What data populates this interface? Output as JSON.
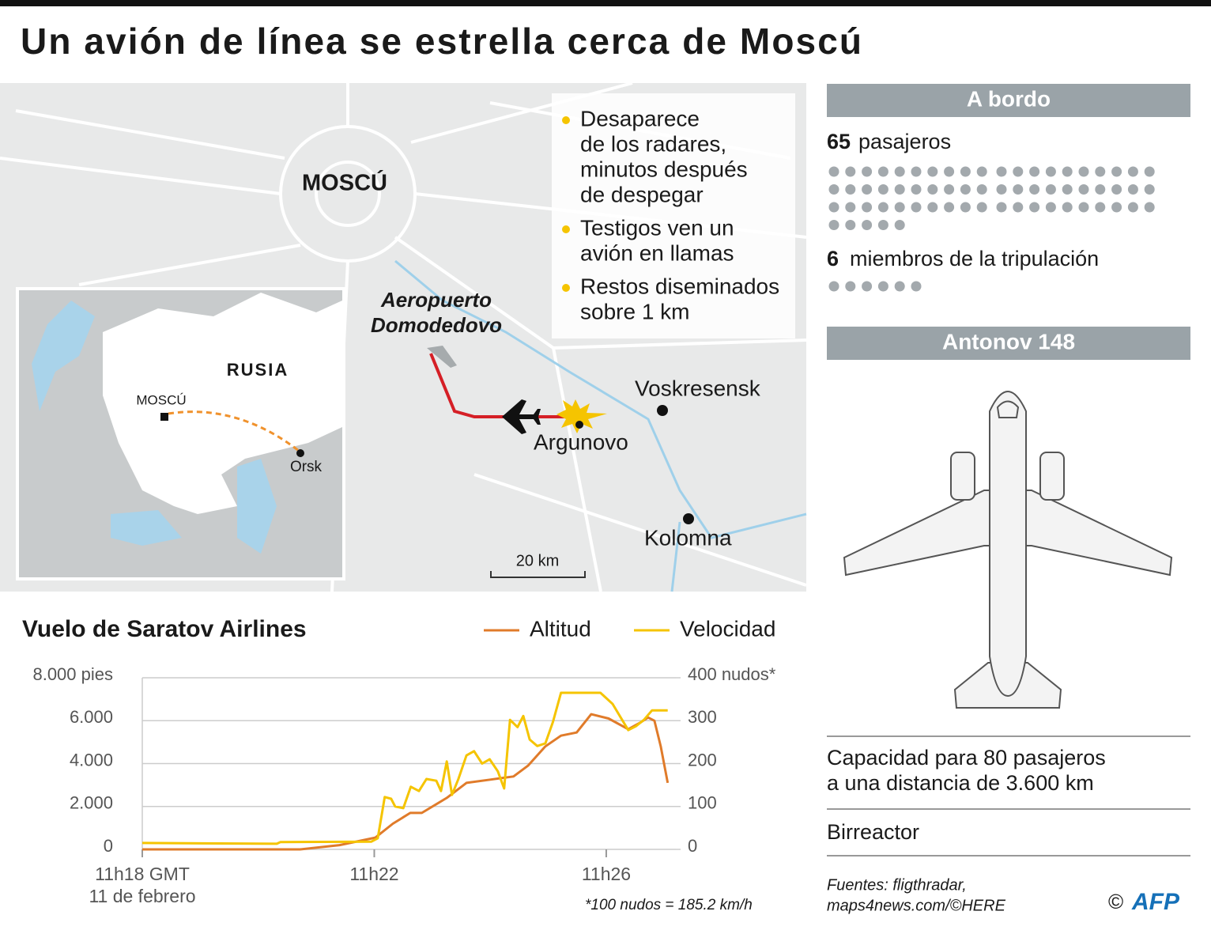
{
  "title": "Un avión de línea se estrella cerca de Moscú",
  "map": {
    "city": "MOSCÚ",
    "airport": [
      "Aeropuerto",
      "Domodedovo"
    ],
    "places": [
      "Voskresensk",
      "Argunovo",
      "Kolomna"
    ],
    "scale": "20 km",
    "notes": [
      [
        "Desaparece",
        "de los radares,",
        "minutos después",
        "de despegar"
      ],
      [
        "Testigos ven un",
        "avión en llamas"
      ],
      [
        "Restos diseminados",
        "sobre 1 km"
      ]
    ],
    "inset": {
      "country": "RUSIA",
      "capital": "MOSCÚ",
      "city": "Orsk"
    }
  },
  "sidebar": {
    "onboard_header": "A bordo",
    "passengers": {
      "count": 65,
      "label": "pasajeros"
    },
    "crew": {
      "count": 6,
      "label": "miembros de la tripulación"
    },
    "aircraft_header": "Antonov 148",
    "specs": [
      [
        "Capacidad para 80 pasajeros",
        "a una distancia de 3.600 km"
      ],
      [
        "Birreactor"
      ]
    ]
  },
  "sources": [
    "Fuentes: fligthradar,",
    "maps4news.com/©HERE"
  ],
  "copyright": "©",
  "logo": "AFP",
  "chart_data": {
    "type": "line",
    "title": "Vuelo de Saratov Airlines",
    "x_date_label": "11 de febrero",
    "footnote": "*100 nudos = 185.2 km/h",
    "xlim": [
      18,
      27.2
    ],
    "xticks": [
      {
        "value": 18,
        "label": "11h18 GMT"
      },
      {
        "value": 22,
        "label": "11h22"
      },
      {
        "value": 26,
        "label": "11h26"
      }
    ],
    "ylim": [
      0,
      8000
    ],
    "yticks": [
      0,
      {
        "value": 2000,
        "label": "2.000"
      },
      {
        "value": 4000,
        "label": "4.000"
      },
      {
        "value": 6000,
        "label": "6.000"
      },
      {
        "value": 8000,
        "label": "8.000 pies"
      }
    ],
    "y2lim": [
      0,
      400
    ],
    "y2ticks": [
      0,
      100,
      200,
      300,
      {
        "value": 400,
        "label": "400 nudos*"
      }
    ],
    "grid": true,
    "series": [
      {
        "name": "Altitud",
        "color": "#e07b2a",
        "x": [
          18,
          20.72,
          21.4,
          22.02,
          22.32,
          22.62,
          22.82,
          23.25,
          23.59,
          24.0,
          24.4,
          24.65,
          24.95,
          25.22,
          25.49,
          25.74,
          26.04,
          26.38,
          26.58,
          26.72,
          26.83,
          26.94,
          27.06
        ],
        "values": [
          0,
          0,
          200,
          550,
          1200,
          1700,
          1700,
          2400,
          3100,
          3250,
          3400,
          3900,
          4800,
          5300,
          5450,
          6300,
          6100,
          5600,
          5900,
          6150,
          6000,
          4800,
          3100
        ]
      },
      {
        "name": "Velocidad",
        "color": "#f5c400",
        "axis": "y2",
        "x": [
          18,
          20.32,
          20.38,
          21.95,
          22.06,
          22.18,
          22.29,
          22.36,
          22.5,
          22.63,
          22.77,
          22.9,
          23.07,
          23.15,
          23.25,
          23.34,
          23.45,
          23.59,
          23.72,
          23.86,
          23.99,
          24.13,
          24.24,
          24.34,
          24.47,
          24.57,
          24.68,
          24.81,
          24.95,
          25.08,
          25.22,
          25.9,
          26.11,
          26.38,
          26.51,
          26.65,
          26.79,
          27.06
        ],
        "values": [
          15,
          13,
          17,
          18,
          26,
          122,
          118,
          100,
          96,
          146,
          136,
          164,
          160,
          136,
          205,
          127,
          164,
          219,
          229,
          200,
          210,
          182,
          142,
          302,
          285,
          311,
          256,
          241,
          247,
          297,
          365,
          365,
          339,
          278,
          287,
          302,
          324,
          324
        ]
      }
    ]
  }
}
